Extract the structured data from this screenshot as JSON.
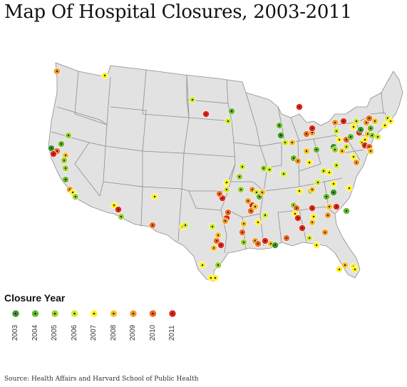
{
  "title": "Map Of Hospital Closures, 2003-2011",
  "legend": {
    "title": "Closure Year",
    "items": [
      {
        "year": "2003",
        "color": "#3a9a2a"
      },
      {
        "year": "2004",
        "color": "#66b82c"
      },
      {
        "year": "2005",
        "color": "#9bd12e"
      },
      {
        "year": "2006",
        "color": "#d2ea2e"
      },
      {
        "year": "2007",
        "color": "#fff21c"
      },
      {
        "year": "2008",
        "color": "#f7c02a"
      },
      {
        "year": "2009",
        "color": "#f39a27"
      },
      {
        "year": "2010",
        "color": "#ef6a1f"
      },
      {
        "year": "2011",
        "color": "#e52618"
      }
    ]
  },
  "source": "Source: Health Affairs and Harvard School of Public Health",
  "map": {
    "region": "United States (lower 48)",
    "marker": "hospital-closure-dot"
  }
}
